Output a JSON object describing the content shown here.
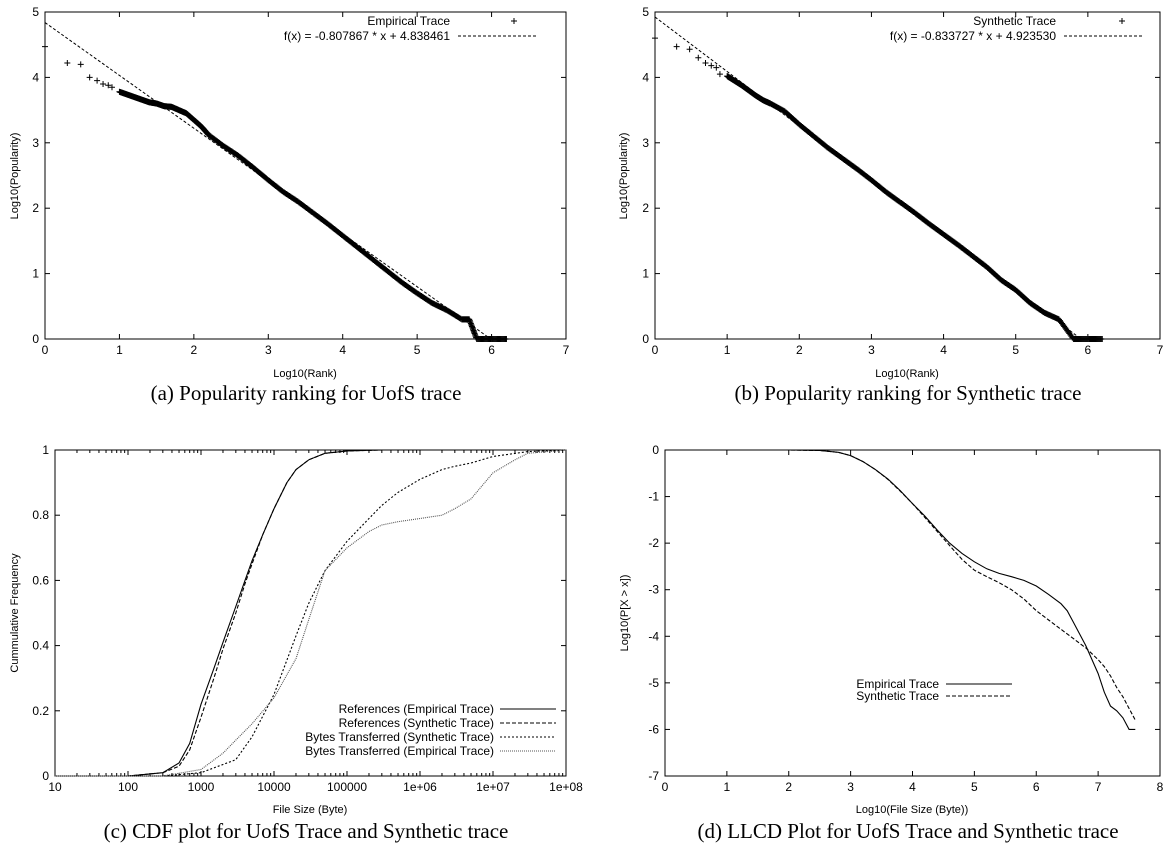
{
  "chart_data": [
    {
      "id": "a",
      "type": "scatter",
      "caption": "(a) Popularity ranking for UofS trace",
      "xlabel": "Log10(Rank)",
      "ylabel": "Log10(Popularity)",
      "xlim": [
        0,
        7
      ],
      "ylim": [
        0,
        5
      ],
      "xticks": [
        "0",
        "1",
        "2",
        "3",
        "4",
        "5",
        "6",
        "7"
      ],
      "yticks": [
        "0",
        "1",
        "2",
        "3",
        "4",
        "5"
      ],
      "grid": false,
      "legend_position": "top-right",
      "series": [
        {
          "name": "Empirical Trace",
          "style": "points",
          "x": [
            0.0,
            0.3,
            0.48,
            0.6,
            0.7,
            0.78,
            0.85,
            0.9,
            1.0,
            1.1,
            1.2,
            1.3,
            1.4,
            1.5,
            1.6,
            1.7,
            1.8,
            1.9,
            2.0,
            2.1,
            2.2,
            2.4,
            2.6,
            2.8,
            3.0,
            3.2,
            3.4,
            3.6,
            3.8,
            4.0,
            4.2,
            4.4,
            4.6,
            4.8,
            5.0,
            5.2,
            5.4,
            5.6,
            5.7,
            5.8,
            6.0,
            6.2
          ],
          "y": [
            4.47,
            4.22,
            4.2,
            4.0,
            3.95,
            3.9,
            3.88,
            3.85,
            3.78,
            3.74,
            3.7,
            3.66,
            3.62,
            3.6,
            3.56,
            3.55,
            3.5,
            3.45,
            3.35,
            3.25,
            3.12,
            2.95,
            2.8,
            2.62,
            2.43,
            2.25,
            2.1,
            1.93,
            1.76,
            1.58,
            1.4,
            1.22,
            1.04,
            0.86,
            0.7,
            0.55,
            0.44,
            0.3,
            0.3,
            0.0,
            0.0,
            0.0
          ]
        },
        {
          "name": "f(x) = -0.807867 * x  + 4.838461",
          "style": "dashed-line",
          "slope": -0.807867,
          "intercept": 4.838461
        }
      ]
    },
    {
      "id": "b",
      "type": "scatter",
      "caption": "(b) Popularity ranking for Synthetic trace",
      "xlabel": "Log10(Rank)",
      "ylabel": "Log10(Popularity)",
      "xlim": [
        0,
        7
      ],
      "ylim": [
        0,
        5
      ],
      "xticks": [
        "0",
        "1",
        "2",
        "3",
        "4",
        "5",
        "6",
        "7"
      ],
      "yticks": [
        "0",
        "1",
        "2",
        "3",
        "4",
        "5"
      ],
      "grid": false,
      "legend_position": "top-right",
      "series": [
        {
          "name": "Synthetic Trace",
          "style": "points",
          "x": [
            0.0,
            0.3,
            0.48,
            0.6,
            0.7,
            0.78,
            0.85,
            0.9,
            1.0,
            1.1,
            1.2,
            1.3,
            1.4,
            1.5,
            1.6,
            1.8,
            2.0,
            2.2,
            2.4,
            2.6,
            2.8,
            3.0,
            3.2,
            3.4,
            3.6,
            3.8,
            4.0,
            4.2,
            4.4,
            4.6,
            4.8,
            5.0,
            5.2,
            5.4,
            5.6,
            5.8,
            6.0,
            6.2
          ],
          "y": [
            4.6,
            4.47,
            4.43,
            4.3,
            4.22,
            4.18,
            4.15,
            4.05,
            4.02,
            3.95,
            3.88,
            3.8,
            3.72,
            3.65,
            3.6,
            3.48,
            3.28,
            3.1,
            2.92,
            2.76,
            2.6,
            2.43,
            2.25,
            2.09,
            1.93,
            1.76,
            1.6,
            1.44,
            1.27,
            1.1,
            0.9,
            0.75,
            0.55,
            0.4,
            0.3,
            0.0,
            0.0,
            0.0
          ]
        },
        {
          "name": "f(x) = -0.833727 * x  + 4.923530",
          "style": "dashed-line",
          "slope": -0.833727,
          "intercept": 4.92353
        }
      ]
    },
    {
      "id": "c",
      "type": "line",
      "caption": "(c) CDF plot for UofS Trace and Synthetic trace",
      "xlabel": "File Size (Byte)",
      "ylabel": "Cummulative Frequency",
      "xscale": "log",
      "xlim": [
        10,
        100000000
      ],
      "ylim": [
        0,
        1
      ],
      "xticks": [
        "10",
        "100",
        "1000",
        "10000",
        "100000",
        "1e+06",
        "1e+07",
        "1e+08"
      ],
      "yticks": [
        "0",
        "0.2",
        "0.4",
        "0.6",
        "0.8",
        "1"
      ],
      "grid": false,
      "legend_position": "bottom-right",
      "series": [
        {
          "name": "References (Empirical Trace)",
          "style": "solid",
          "x": [
            10,
            100,
            300,
            500,
            700,
            1000,
            1500,
            2000,
            3000,
            4000,
            5000,
            7000,
            10000,
            15000,
            20000,
            30000,
            50000,
            100000,
            300000,
            1000000,
            10000000,
            100000000
          ],
          "y": [
            0,
            0.0,
            0.01,
            0.04,
            0.1,
            0.22,
            0.33,
            0.41,
            0.52,
            0.6,
            0.66,
            0.74,
            0.82,
            0.9,
            0.94,
            0.97,
            0.99,
            0.997,
            1.0,
            1.0,
            1.0,
            1.0
          ]
        },
        {
          "name": "References (Synthetic Trace)",
          "style": "dashed",
          "x": [
            10,
            100,
            300,
            500,
            700,
            1000,
            1500,
            2000,
            3000,
            4000,
            5000,
            7000,
            10000,
            15000,
            20000,
            30000,
            50000,
            100000,
            300000,
            1000000,
            10000000,
            100000000
          ],
          "y": [
            0,
            0.0,
            0.01,
            0.03,
            0.08,
            0.18,
            0.3,
            0.39,
            0.5,
            0.59,
            0.65,
            0.74,
            0.82,
            0.9,
            0.94,
            0.97,
            0.99,
            0.997,
            1.0,
            1.0,
            1.0,
            1.0
          ]
        },
        {
          "name": "Bytes Transferred (Synthetic Trace)",
          "style": "dotted",
          "x": [
            10,
            300,
            1000,
            3000,
            5000,
            10000,
            20000,
            30000,
            50000,
            100000,
            200000,
            300000,
            500000,
            1000000,
            2000000,
            3000000,
            5000000,
            10000000,
            30000000,
            100000000
          ],
          "y": [
            0,
            0.0,
            0.01,
            0.05,
            0.12,
            0.25,
            0.43,
            0.53,
            0.63,
            0.72,
            0.79,
            0.83,
            0.87,
            0.91,
            0.94,
            0.95,
            0.96,
            0.98,
            0.995,
            1.0
          ]
        },
        {
          "name": "Bytes Transferred (Empirical Trace)",
          "style": "dot-dash",
          "x": [
            10,
            300,
            1000,
            2000,
            3000,
            5000,
            10000,
            20000,
            30000,
            50000,
            100000,
            200000,
            300000,
            500000,
            1000000,
            2000000,
            3000000,
            5000000,
            10000000,
            20000000,
            30000000,
            100000000
          ],
          "y": [
            0,
            0.0,
            0.02,
            0.07,
            0.11,
            0.16,
            0.24,
            0.36,
            0.48,
            0.63,
            0.7,
            0.75,
            0.77,
            0.78,
            0.79,
            0.8,
            0.82,
            0.85,
            0.93,
            0.97,
            0.99,
            1.0
          ]
        }
      ]
    },
    {
      "id": "d",
      "type": "line",
      "caption": "(d) LLCD Plot for UofS Trace and Synthetic trace",
      "xlabel": "Log10(File Size (Byte))",
      "ylabel": "Log10(P[X > x])",
      "xlim": [
        0,
        8
      ],
      "ylim": [
        -7,
        0
      ],
      "xticks": [
        "0",
        "1",
        "2",
        "3",
        "4",
        "5",
        "6",
        "7",
        "8"
      ],
      "yticks": [
        "-7",
        "-6",
        "-5",
        "-4",
        "-3",
        "-2",
        "-1",
        "0"
      ],
      "grid": false,
      "legend_position": "center-right",
      "series": [
        {
          "name": "Empirical Trace",
          "style": "solid",
          "x": [
            0,
            1,
            2,
            2.5,
            2.8,
            3.0,
            3.2,
            3.4,
            3.6,
            3.8,
            4.0,
            4.2,
            4.4,
            4.6,
            4.8,
            5.0,
            5.2,
            5.4,
            5.6,
            5.8,
            6.0,
            6.2,
            6.4,
            6.5,
            6.6,
            6.8,
            7.0,
            7.1,
            7.2,
            7.3,
            7.4,
            7.5,
            7.6
          ],
          "y": [
            0,
            0,
            0,
            -0.01,
            -0.05,
            -0.12,
            -0.25,
            -0.42,
            -0.62,
            -0.87,
            -1.15,
            -1.42,
            -1.72,
            -2.0,
            -2.22,
            -2.4,
            -2.55,
            -2.65,
            -2.72,
            -2.8,
            -2.92,
            -3.1,
            -3.3,
            -3.45,
            -3.7,
            -4.2,
            -4.8,
            -5.2,
            -5.5,
            -5.6,
            -5.75,
            -6.0,
            -6.0
          ]
        },
        {
          "name": "Synthetic Trace",
          "style": "dashed",
          "x": [
            0,
            1,
            2,
            2.5,
            2.8,
            3.0,
            3.2,
            3.4,
            3.6,
            3.8,
            4.0,
            4.2,
            4.4,
            4.6,
            4.8,
            5.0,
            5.2,
            5.4,
            5.6,
            5.8,
            6.0,
            6.2,
            6.4,
            6.6,
            6.8,
            7.0,
            7.1,
            7.2,
            7.3,
            7.4,
            7.5,
            7.6
          ],
          "y": [
            0,
            0,
            0,
            -0.01,
            -0.05,
            -0.12,
            -0.25,
            -0.42,
            -0.63,
            -0.88,
            -1.15,
            -1.45,
            -1.75,
            -2.05,
            -2.35,
            -2.58,
            -2.72,
            -2.85,
            -3.0,
            -3.2,
            -3.45,
            -3.65,
            -3.85,
            -4.05,
            -4.25,
            -4.5,
            -4.65,
            -4.85,
            -5.1,
            -5.3,
            -5.55,
            -5.8
          ]
        }
      ]
    }
  ]
}
